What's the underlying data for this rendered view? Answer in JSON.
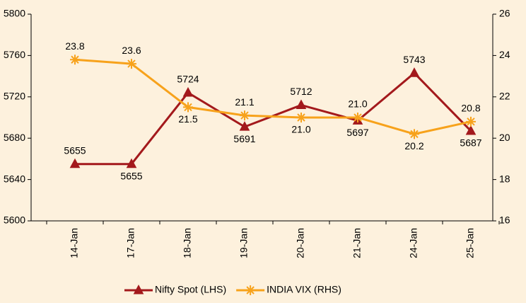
{
  "chart_data": {
    "type": "line",
    "categories": [
      "14-Jan",
      "17-Jan",
      "18-Jan",
      "19-Jan",
      "20-Jan",
      "21-Jan",
      "24-Jan",
      "25-Jan"
    ],
    "series": [
      {
        "name": "Nifty Spot (LHS)",
        "color": "#a3191c",
        "marker": "triangle",
        "axis": "y",
        "values": [
          5655,
          5655,
          5724,
          5691,
          5712,
          5697,
          5743,
          5687
        ]
      },
      {
        "name": "INDIA VIX (RHS)",
        "color": "#f7a21b",
        "marker": "asterisk",
        "axis": "y2",
        "values": [
          23.8,
          23.6,
          21.5,
          21.1,
          21.0,
          21.0,
          20.2,
          20.8
        ],
        "value_labels": [
          "23.8",
          "23.6",
          "21.5",
          "21.1",
          "21.0",
          "21.0",
          "20.2",
          "20.8"
        ]
      }
    ],
    "ylim": [
      5600,
      5800
    ],
    "yticks": [
      5600,
      5640,
      5680,
      5720,
      5760,
      5800
    ],
    "y2lim": [
      16,
      26
    ],
    "y2ticks": [
      16,
      18,
      20,
      22,
      24,
      26
    ],
    "legend": "bottom"
  }
}
